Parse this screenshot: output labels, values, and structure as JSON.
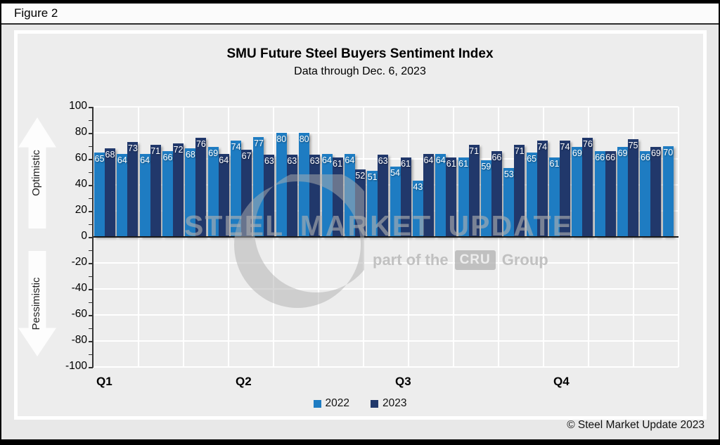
{
  "figure_label": "Figure 2",
  "title": "SMU Future Steel Buyers Sentiment Index",
  "subtitle": "Data through Dec. 6, 2023",
  "copyright": "© Steel Market Update 2023",
  "side_labels": {
    "optimistic": "Optimistic",
    "pessimistic": "Pessimistic"
  },
  "watermark": {
    "main": "STEEL MARKET UPDATE",
    "part_of": "part of the",
    "cru": "CRU",
    "group": "Group"
  },
  "legend": {
    "items": [
      {
        "label": "2022",
        "color": "#1E7CC2"
      },
      {
        "label": "2023",
        "color": "#21386B"
      }
    ]
  },
  "y_ticks": [
    100,
    80,
    60,
    40,
    20,
    0,
    -20,
    -40,
    -60,
    -80,
    -100
  ],
  "chart_data": {
    "type": "bar",
    "title": "SMU Future Steel Buyers Sentiment Index",
    "subtitle": "Data through Dec. 6, 2023",
    "ylabel": "",
    "xlabel": "",
    "ylim": [
      -100,
      100
    ],
    "ytick_interval": 20,
    "grid": true,
    "legend_position": "bottom",
    "categories_note": "26 biweekly periods across the year; quarter start labels shown",
    "xlabels": [
      "Q1",
      "Q2",
      "Q3",
      "Q4"
    ],
    "series": [
      {
        "name": "2022",
        "color": "#1E7CC2",
        "values": [
          65,
          64,
          64,
          66,
          68,
          69,
          74,
          77,
          80,
          80,
          64,
          64,
          51,
          54,
          43,
          64,
          61,
          59,
          53,
          65,
          61,
          69,
          66,
          69,
          66,
          70
        ]
      },
      {
        "name": "2023",
        "color": "#21386B",
        "values": [
          68,
          73,
          71,
          72,
          76,
          64,
          67,
          63,
          63,
          63,
          61,
          52,
          63,
          61,
          64,
          61,
          71,
          66,
          71,
          74,
          74,
          76,
          66,
          75,
          69,
          null
        ]
      }
    ]
  }
}
